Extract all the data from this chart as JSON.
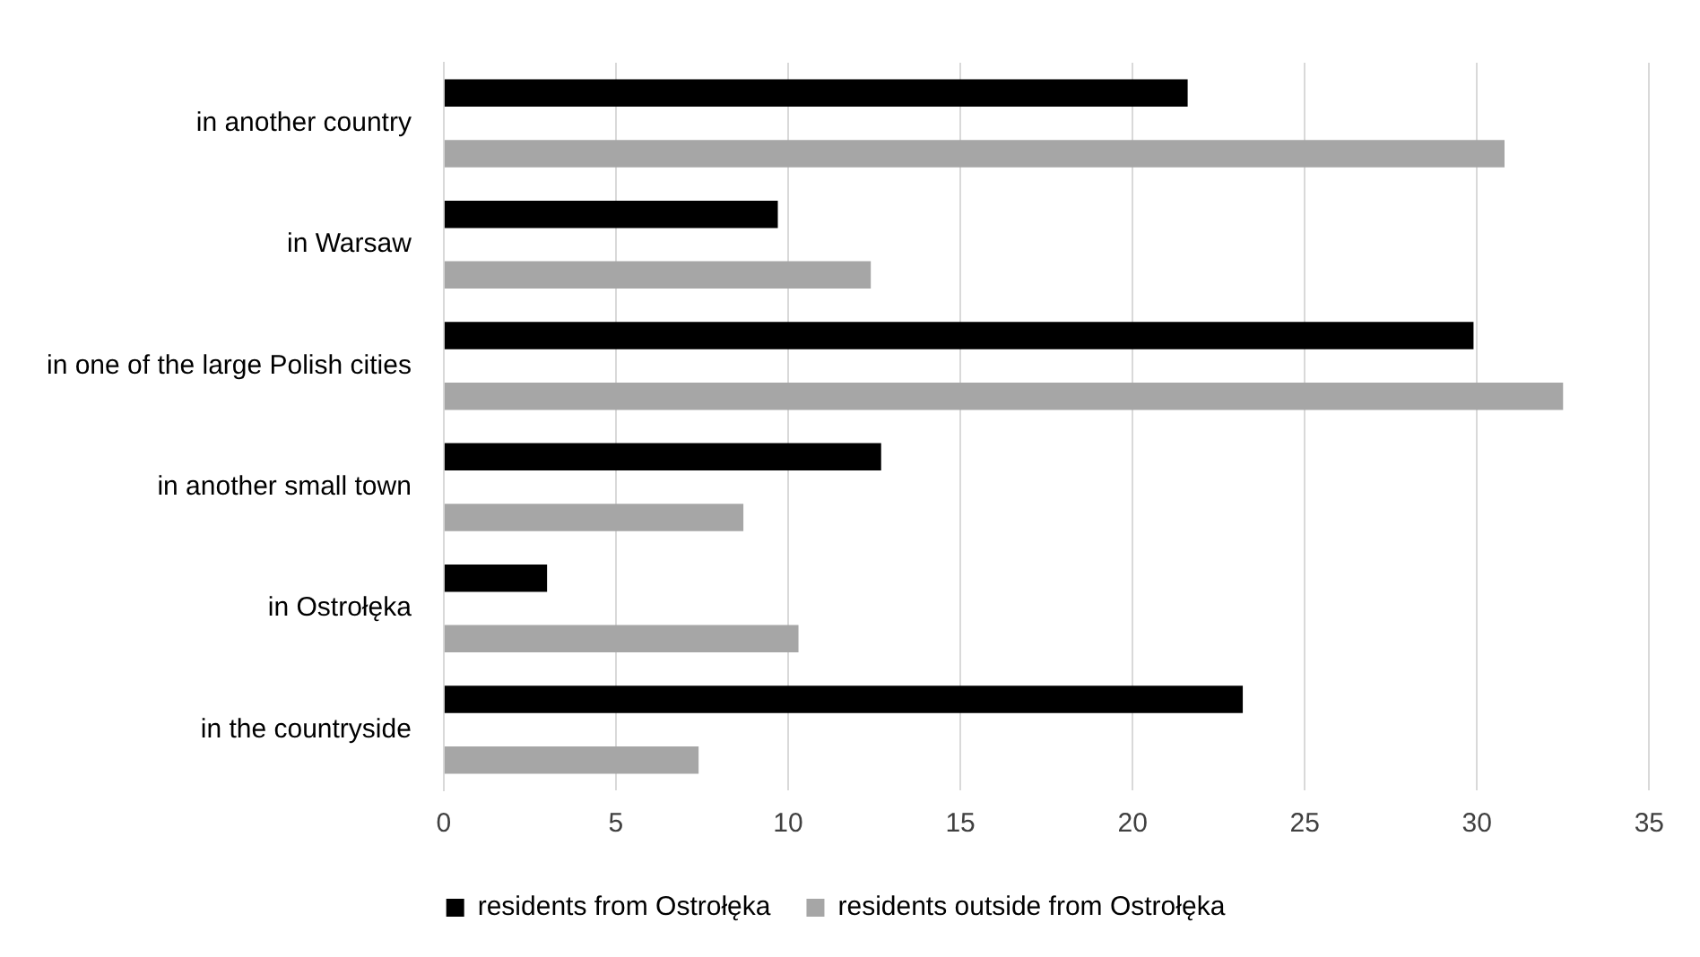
{
  "chart_data": {
    "type": "bar",
    "orientation": "horizontal",
    "categories": [
      "in another country",
      "in Warsaw",
      "in one of the large Polish cities",
      "in another small town",
      "in Ostrołęka",
      "in the countryside"
    ],
    "series": [
      {
        "name": "residents from Ostrołęka",
        "color": "#000000",
        "values": [
          21.6,
          9.7,
          29.9,
          12.7,
          3.0,
          23.2
        ]
      },
      {
        "name": "residents outside from Ostrołęka",
        "color": "#a6a6a6",
        "values": [
          30.8,
          12.4,
          32.5,
          8.7,
          10.3,
          7.4
        ]
      }
    ],
    "xlim": [
      0,
      35
    ],
    "xticks": [
      0,
      5,
      10,
      15,
      20,
      25,
      30,
      35
    ],
    "grid": "x",
    "legend": "bottom"
  }
}
